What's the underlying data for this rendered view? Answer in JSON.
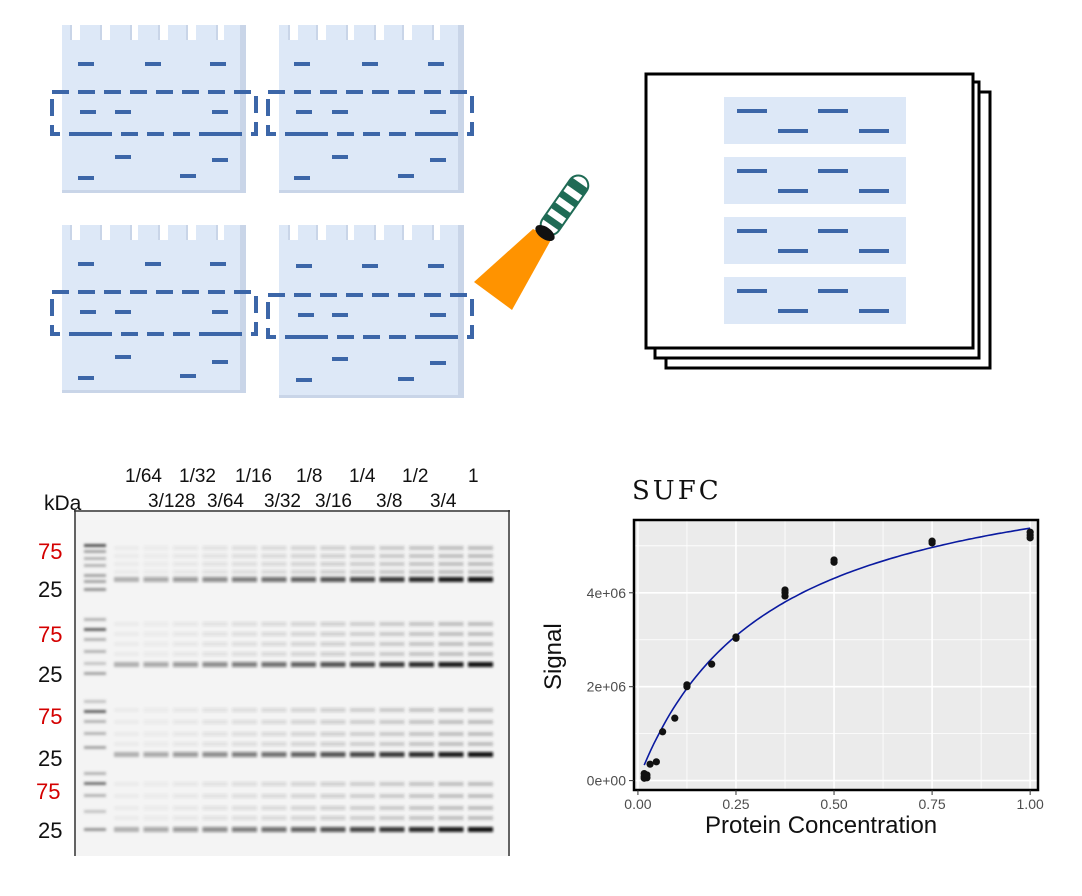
{
  "western_blot": {
    "unit_label": "kDa",
    "dilutions_top": [
      "1/64",
      "1/32",
      "1/16",
      "1/8",
      "1/4",
      "1/2",
      "1"
    ],
    "dilutions_bottom": [
      "3/128",
      "3/64",
      "3/32",
      "3/16",
      "3/8",
      "3/4"
    ],
    "markers": [
      {
        "text": "75",
        "color": "#d40000"
      },
      {
        "text": "25",
        "color": "#111111"
      },
      {
        "text": "75",
        "color": "#d40000"
      },
      {
        "text": "25",
        "color": "#111111"
      },
      {
        "text": "75",
        "color": "#d40000"
      },
      {
        "text": "25",
        "color": "#111111"
      },
      {
        "text": "75",
        "color": "#d40000"
      },
      {
        "text": "25",
        "color": "#111111"
      }
    ]
  },
  "chart_data": {
    "type": "scatter",
    "title": "SUFC",
    "xlabel": "Protein Concentration",
    "ylabel": "Signal",
    "xlim": [
      -0.01,
      1.02
    ],
    "ylim": [
      -200000,
      5550000
    ],
    "xticks": [
      0.0,
      0.25,
      0.5,
      0.75,
      1.0
    ],
    "xtick_labels": [
      "0.00",
      "0.25",
      "0.50",
      "0.75",
      "1.00"
    ],
    "yticks": [
      0,
      2000000,
      4000000
    ],
    "ytick_labels": [
      "0e+00",
      "2e+06",
      "4e+06"
    ],
    "points": [
      {
        "x": 0.016,
        "y": 50000
      },
      {
        "x": 0.016,
        "y": 90000
      },
      {
        "x": 0.016,
        "y": 150000
      },
      {
        "x": 0.023,
        "y": 60000
      },
      {
        "x": 0.023,
        "y": 120000
      },
      {
        "x": 0.031,
        "y": 350000
      },
      {
        "x": 0.047,
        "y": 400000
      },
      {
        "x": 0.063,
        "y": 1040000
      },
      {
        "x": 0.094,
        "y": 1330000
      },
      {
        "x": 0.125,
        "y": 2000000
      },
      {
        "x": 0.125,
        "y": 2040000
      },
      {
        "x": 0.188,
        "y": 2480000
      },
      {
        "x": 0.25,
        "y": 3030000
      },
      {
        "x": 0.25,
        "y": 3060000
      },
      {
        "x": 0.375,
        "y": 3930000
      },
      {
        "x": 0.375,
        "y": 4000000
      },
      {
        "x": 0.375,
        "y": 4060000
      },
      {
        "x": 0.5,
        "y": 4650000
      },
      {
        "x": 0.5,
        "y": 4700000
      },
      {
        "x": 0.75,
        "y": 5060000
      },
      {
        "x": 0.75,
        "y": 5100000
      },
      {
        "x": 1.0,
        "y": 5170000
      },
      {
        "x": 1.0,
        "y": 5230000
      },
      {
        "x": 1.0,
        "y": 5290000
      }
    ],
    "fit": {
      "model": "hyperbolic",
      "ymax": 7150000,
      "k": 0.33,
      "color": "#0a1aa0"
    },
    "background": "#ebebeb",
    "point_color": "#111111"
  }
}
